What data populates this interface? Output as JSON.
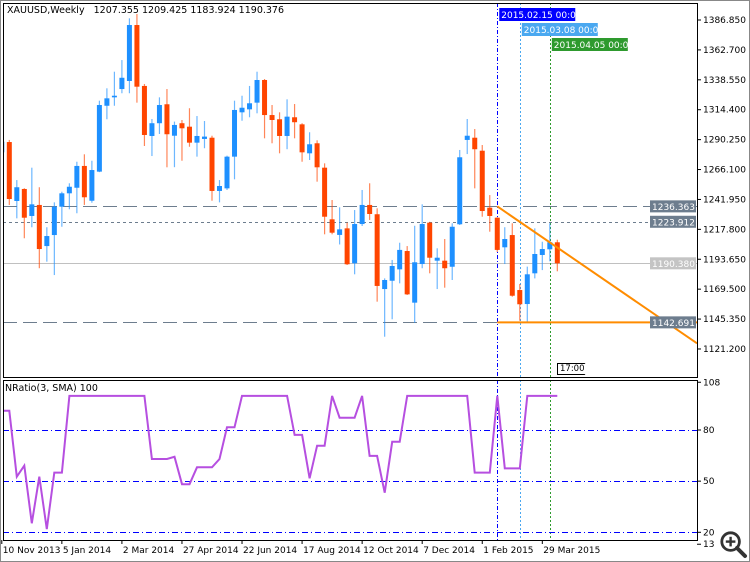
{
  "header": {
    "symbol_timeframe": "XAUUSD,Weekly",
    "ohlc": "1207.355 1209.425 1183.924 1190.376"
  },
  "indicator": {
    "title": "NRatio(3, SMA) 100",
    "levels": [
      80,
      50,
      20
    ],
    "range": [
      13,
      108
    ],
    "axis_labels": [
      "108",
      "80",
      "50",
      "20",
      "13"
    ]
  },
  "countdown": "17:00",
  "colors": {
    "bull": "#1e90ff",
    "bear": "#ff4500",
    "indicator_line": "#b64fe0",
    "level_line": "#0000ff",
    "trendline": "#ff8c00",
    "vline_1": "#0000ff",
    "vline_2": "#4aa8f0",
    "vline_3": "#2e9a2e",
    "label_box": "#6d7d8e",
    "bid_box": "#c4c4c4"
  },
  "chart_data": {
    "type": "candlestick",
    "title": "XAUUSD,Weekly",
    "ylim": [
      1105,
      1395
    ],
    "grid": false,
    "price_axis_labels": [
      "1386.850",
      "1362.700",
      "1338.550",
      "1314.400",
      "1290.250",
      "1266.100",
      "1241.950",
      "1217.800",
      "1193.650",
      "1169.500",
      "1145.350",
      "1121.200"
    ],
    "date_axis_labels": [
      {
        "date": "2013-11-10",
        "label": "10 Nov 2013"
      },
      {
        "date": "2014-01-05",
        "label": "5 Jan 2014"
      },
      {
        "date": "2014-03-02",
        "label": "2 Mar 2014"
      },
      {
        "date": "2014-04-27",
        "label": "27 Apr 2014"
      },
      {
        "date": "2014-06-22",
        "label": "22 Jun 2014"
      },
      {
        "date": "2014-08-17",
        "label": "17 Aug 2014"
      },
      {
        "date": "2014-10-12",
        "label": "12 Oct 2014"
      },
      {
        "date": "2014-12-07",
        "label": "7 Dec 2014"
      },
      {
        "date": "2015-02-01",
        "label": "1 Feb 2015"
      },
      {
        "date": "2015-03-29",
        "label": "29 Mar 2015"
      }
    ],
    "dates": [
      "2013-11-10",
      "2013-11-17",
      "2013-11-24",
      "2013-12-01",
      "2013-12-08",
      "2013-12-15",
      "2013-12-22",
      "2013-12-29",
      "2014-01-05",
      "2014-01-12",
      "2014-01-19",
      "2014-01-26",
      "2014-02-02",
      "2014-02-09",
      "2014-02-16",
      "2014-02-23",
      "2014-03-02",
      "2014-03-09",
      "2014-03-16",
      "2014-03-23",
      "2014-03-30",
      "2014-04-06",
      "2014-04-13",
      "2014-04-20",
      "2014-04-27",
      "2014-05-04",
      "2014-05-11",
      "2014-05-18",
      "2014-05-25",
      "2014-06-01",
      "2014-06-08",
      "2014-06-15",
      "2014-06-22",
      "2014-06-29",
      "2014-07-06",
      "2014-07-13",
      "2014-07-20",
      "2014-07-27",
      "2014-08-03",
      "2014-08-10",
      "2014-08-17",
      "2014-08-24",
      "2014-08-31",
      "2014-09-07",
      "2014-09-14",
      "2014-09-21",
      "2014-09-28",
      "2014-10-05",
      "2014-10-12",
      "2014-10-19",
      "2014-10-26",
      "2014-11-02",
      "2014-11-09",
      "2014-11-16",
      "2014-11-23",
      "2014-11-30",
      "2014-12-07",
      "2014-12-14",
      "2014-12-21",
      "2014-12-28",
      "2015-01-04",
      "2015-01-11",
      "2015-01-18",
      "2015-01-25",
      "2015-02-01",
      "2015-02-08",
      "2015-02-15",
      "2015-02-22",
      "2015-03-01",
      "2015-03-08",
      "2015-03-15",
      "2015-03-22",
      "2015-03-29",
      "2015-04-05",
      "2015-04-12"
    ],
    "ohlc": [
      [
        1280,
        1290,
        1275,
        1288.6
      ],
      [
        1288.3,
        1290,
        1237.5,
        1242.3
      ],
      [
        1240.7,
        1257.6,
        1226.7,
        1251.8
      ],
      [
        1250.4,
        1251,
        1210.6,
        1227.2
      ],
      [
        1228.6,
        1267.6,
        1219.5,
        1238
      ],
      [
        1237.5,
        1251.8,
        1186.4,
        1201.9
      ],
      [
        1204.3,
        1219.5,
        1191.7,
        1212.4
      ],
      [
        1213.2,
        1239.6,
        1180.9,
        1236.1
      ],
      [
        1236.1,
        1248.2,
        1219.9,
        1246.9
      ],
      [
        1246.9,
        1255,
        1234,
        1252.2
      ],
      [
        1251.4,
        1272.4,
        1230.8,
        1269
      ],
      [
        1269,
        1278.4,
        1237.5,
        1243.7
      ],
      [
        1240.9,
        1273.2,
        1239.3,
        1265.7
      ],
      [
        1264.4,
        1321.7,
        1264,
        1318.2
      ],
      [
        1317.6,
        1331.7,
        1306.7,
        1323.6
      ],
      [
        1324.4,
        1345.1,
        1317.6,
        1325.7
      ],
      [
        1331.1,
        1354.5,
        1327.7,
        1340.2
      ],
      [
        1337.6,
        1388.2,
        1327.7,
        1382.8
      ],
      [
        1382.8,
        1391.7,
        1320.1,
        1333
      ],
      [
        1333.6,
        1335.2,
        1285.1,
        1294
      ],
      [
        1293.2,
        1306.9,
        1277,
        1303.5
      ],
      [
        1303.5,
        1324.4,
        1294.8,
        1318.2
      ],
      [
        1318.8,
        1331.1,
        1267.9,
        1294.6
      ],
      [
        1293.4,
        1304.8,
        1268,
        1302.1
      ],
      [
        1303.5,
        1306.1,
        1273.2,
        1299.4
      ],
      [
        1300.7,
        1315.6,
        1284.5,
        1287.8
      ],
      [
        1287.8,
        1309.3,
        1276.5,
        1293.2
      ],
      [
        1290.8,
        1305.3,
        1283.3,
        1292.7
      ],
      [
        1291.8,
        1293.4,
        1240.9,
        1248.8
      ],
      [
        1248.8,
        1257.6,
        1239.6,
        1252.8
      ],
      [
        1250.9,
        1277.3,
        1249.6,
        1276.5
      ],
      [
        1276.5,
        1321.7,
        1258.2,
        1314.2
      ],
      [
        1312.3,
        1325.7,
        1305.5,
        1316
      ],
      [
        1314.7,
        1333.6,
        1308.3,
        1319.6
      ],
      [
        1320.1,
        1345.1,
        1311.5,
        1338.4
      ],
      [
        1338.4,
        1339.2,
        1291.3,
        1310.1
      ],
      [
        1310.1,
        1318.2,
        1287.3,
        1306.1
      ],
      [
        1306.7,
        1312.3,
        1279.2,
        1293.2
      ],
      [
        1293.2,
        1322.8,
        1282.5,
        1308.8
      ],
      [
        1308.3,
        1319,
        1291.3,
        1304.3
      ],
      [
        1302.6,
        1303.5,
        1272.4,
        1280
      ],
      [
        1279.2,
        1296.2,
        1273.8,
        1286.5
      ],
      [
        1287.3,
        1289.7,
        1256.3,
        1267.9
      ],
      [
        1267.6,
        1271.1,
        1213.8,
        1228
      ],
      [
        1225.9,
        1241.5,
        1213.8,
        1215.1
      ],
      [
        1213.3,
        1235.6,
        1205.6,
        1217.8
      ],
      [
        1218.6,
        1223.2,
        1189,
        1189.6
      ],
      [
        1190.4,
        1233.4,
        1181.5,
        1222.1
      ],
      [
        1222.1,
        1249.6,
        1220.5,
        1237.5
      ],
      [
        1237.5,
        1255,
        1225.4,
        1230.2
      ],
      [
        1230,
        1234.8,
        1159.4,
        1172.1
      ],
      [
        1169.6,
        1178.2,
        1131.1,
        1176.9
      ],
      [
        1176.3,
        1193.1,
        1145.2,
        1188.2
      ],
      [
        1185.5,
        1207,
        1174.2,
        1201.2
      ],
      [
        1200.3,
        1204.3,
        1164.8,
        1165.3
      ],
      [
        1158.6,
        1220.7,
        1142.4,
        1191.2
      ],
      [
        1189.8,
        1238,
        1186.4,
        1222.1
      ],
      [
        1223.2,
        1223.9,
        1182.3,
        1194.9
      ],
      [
        1192.5,
        1202.5,
        1169.6,
        1194.9
      ],
      [
        1192.5,
        1210,
        1170.7,
        1186.4
      ],
      [
        1187.6,
        1222.7,
        1176.9,
        1219.9
      ],
      [
        1221.9,
        1281.9,
        1221.3,
        1276
      ],
      [
        1290,
        1306.9,
        1278.6,
        1293.4
      ],
      [
        1291.8,
        1298.8,
        1250.9,
        1282.5
      ],
      [
        1281.3,
        1285.9,
        1228,
        1232.6
      ],
      [
        1235.3,
        1245.5,
        1215.9,
        1228.6
      ],
      [
        1227.2,
        1227.6,
        1199.5,
        1201.2
      ],
      [
        1203.3,
        1219.5,
        1189.8,
        1210
      ],
      [
        1213.2,
        1222.7,
        1163.4,
        1164.2
      ],
      [
        1168.8,
        1173.7,
        1144,
        1157.3
      ],
      [
        1157.5,
        1187.7,
        1143.2,
        1181.5
      ],
      [
        1182.3,
        1218.6,
        1178.2,
        1197.9
      ],
      [
        1197.1,
        1207.8,
        1184.9,
        1201.9
      ],
      [
        1201.7,
        1222.7,
        1192,
        1207.4
      ],
      [
        1207.355,
        1209.425,
        1183.924,
        1190.376
      ]
    ],
    "nratio": [
      91.3,
      91.3,
      52.6,
      59.1,
      25.3,
      52.6,
      21.9,
      55,
      55,
      100,
      100,
      100,
      100,
      100,
      100,
      100,
      100,
      100,
      100,
      100,
      63,
      63,
      63,
      64.3,
      48.2,
      48.2,
      58.1,
      58.1,
      58.1,
      63,
      81.6,
      81.6,
      100,
      100,
      100,
      100,
      100,
      100,
      100,
      77.1,
      77.1,
      51.7,
      70.8,
      70.8,
      100,
      87.2,
      87.2,
      87.2,
      100,
      64.8,
      64.8,
      43.2,
      73.1,
      73.1,
      100,
      100,
      100,
      100,
      100,
      100,
      100,
      100,
      100,
      55,
      55,
      55,
      100,
      57.5,
      57.5,
      57.5,
      100,
      100,
      100,
      100,
      100
    ],
    "horizontal_levels": [
      {
        "price": 1236.363,
        "label": "1236.363",
        "style": "dashed"
      },
      {
        "price": 1223.912,
        "label": "1223.912",
        "style": "dotted"
      },
      {
        "price": 1190.38,
        "label": "1190.380",
        "style": "bid"
      },
      {
        "price": 1142.691,
        "label": "1142.691",
        "style": "dashed"
      }
    ],
    "trendline": {
      "from": {
        "date": "2015-02-15",
        "price": 1236.363
      },
      "to": {
        "date": "2015-04-12",
        "price": 1203.1
      }
    },
    "support_line": {
      "from_date": "2015-02-15",
      "price": 1142.691
    },
    "vertical_lines": [
      {
        "date": "2015-02-15",
        "label": "2015.02.15 00:00",
        "color_key": "vline_1"
      },
      {
        "date": "2015-03-08",
        "label": "2015.03.08 00:00",
        "color_key": "vline_2"
      },
      {
        "date": "2015-04-05",
        "label": "2015.04.05 00:00",
        "color_key": "vline_3"
      }
    ]
  }
}
